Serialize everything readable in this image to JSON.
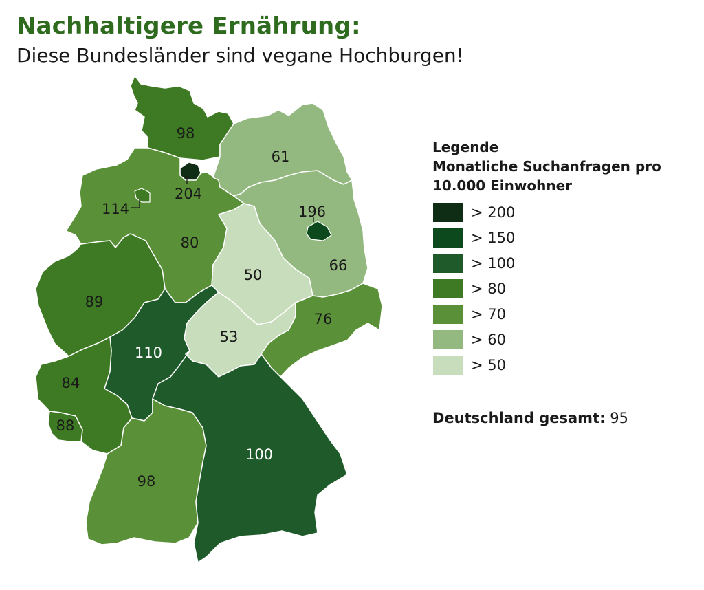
{
  "title": "Nachhaltigere Ernährung:",
  "subtitle": "Diese Bundesländer sind vegane Hochburgen!",
  "legend": {
    "title": "Legende",
    "subtitle": "Monatliche Suchanfragen pro 10.000 Einwohner",
    "items": [
      {
        "label": "> 200",
        "color": "#0e2d14"
      },
      {
        "label": "> 150",
        "color": "#0c4a1d"
      },
      {
        "label": "> 100",
        "color": "#1f5a2b"
      },
      {
        "label": "> 80",
        "color": "#3e7a23"
      },
      {
        "label": "> 70",
        "color": "#5a9138"
      },
      {
        "label": "> 60",
        "color": "#94b980"
      },
      {
        "label": "> 50",
        "color": "#c8ddbb"
      }
    ]
  },
  "total": {
    "label": "Deutschland gesamt:",
    "value": "95"
  },
  "states": [
    {
      "id": "schleswig-holstein",
      "value": "98"
    },
    {
      "id": "hamburg",
      "value": "204"
    },
    {
      "id": "bremen",
      "value": "114"
    },
    {
      "id": "niedersachsen",
      "value": "80"
    },
    {
      "id": "mecklenburg-vorpommern",
      "value": "61"
    },
    {
      "id": "berlin",
      "value": "196"
    },
    {
      "id": "brandenburg",
      "value": "66"
    },
    {
      "id": "sachsen-anhalt",
      "value": "50"
    },
    {
      "id": "nordrhein-westfalen",
      "value": "89"
    },
    {
      "id": "hessen",
      "value": "110"
    },
    {
      "id": "thueringen",
      "value": "53"
    },
    {
      "id": "sachsen",
      "value": "76"
    },
    {
      "id": "rheinland-pfalz",
      "value": "84"
    },
    {
      "id": "saarland",
      "value": "88"
    },
    {
      "id": "baden-wuerttemberg",
      "value": "98"
    },
    {
      "id": "bayern",
      "value": "100"
    }
  ]
}
